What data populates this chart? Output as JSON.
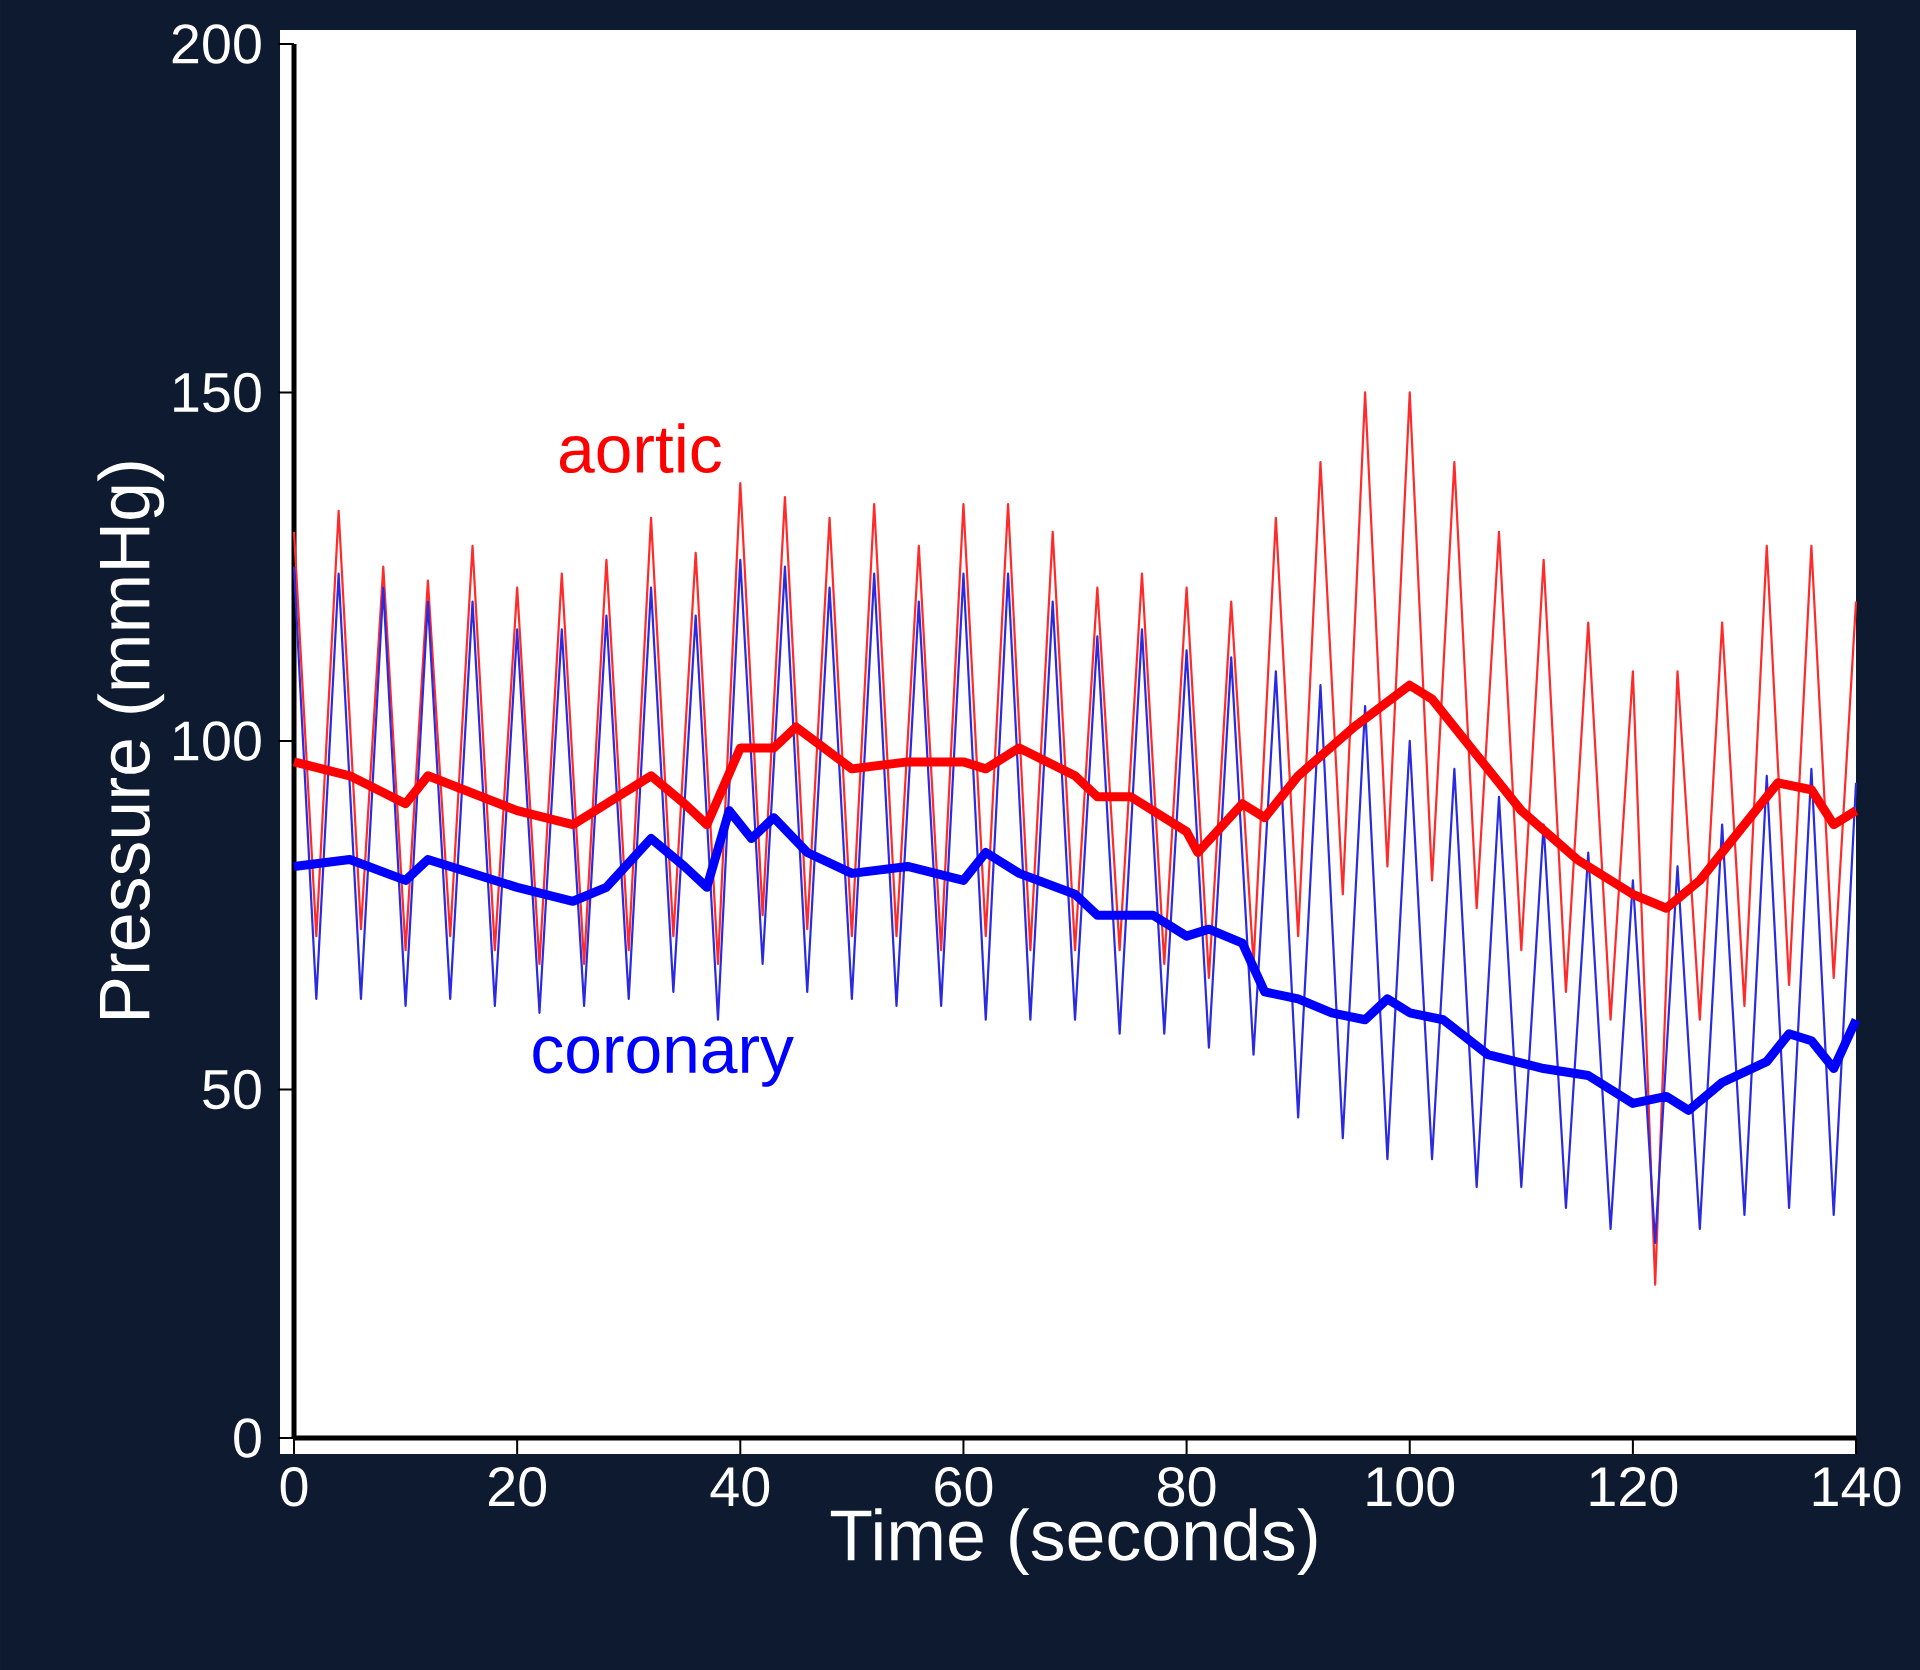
{
  "chart_data": {
    "type": "line",
    "xlabel": "Time (seconds)",
    "ylabel": "Pressure (mmHg)",
    "xlim": [
      0,
      140
    ],
    "ylim": [
      0,
      200
    ],
    "xticks": [
      0,
      20,
      40,
      60,
      80,
      100,
      120,
      140
    ],
    "yticks": [
      0,
      50,
      100,
      150,
      200
    ],
    "marker": "none",
    "series": [
      {
        "color": "#ff2a2a",
        "x": [
          0,
          2,
          4,
          6,
          8,
          10,
          12,
          14,
          16,
          18,
          20,
          22,
          24,
          26,
          28,
          30,
          32,
          34,
          36,
          38,
          40,
          42,
          44,
          46,
          48,
          50,
          52,
          54,
          56,
          58,
          60,
          62,
          64,
          66,
          68,
          70,
          72,
          74,
          76,
          78,
          80,
          82,
          84,
          86,
          88,
          90,
          92,
          94,
          96,
          98,
          100,
          102,
          104,
          106,
          108,
          110,
          112,
          114,
          116,
          118,
          120,
          122,
          124,
          126,
          128,
          130,
          132,
          134,
          136,
          138,
          140
        ],
        "values": [
          130,
          72,
          133,
          73,
          125,
          70,
          123,
          72,
          128,
          70,
          122,
          68,
          124,
          68,
          126,
          70,
          132,
          72,
          127,
          68,
          137,
          75,
          135,
          73,
          132,
          72,
          134,
          72,
          128,
          70,
          134,
          72,
          134,
          70,
          130,
          70,
          122,
          70,
          124,
          68,
          122,
          66,
          120,
          68,
          132,
          72,
          140,
          78,
          150,
          82,
          150,
          80,
          140,
          76,
          130,
          70,
          126,
          64,
          117,
          60,
          110,
          22,
          110,
          60,
          117,
          62,
          128,
          65,
          128,
          66,
          120
        ]
      },
      {
        "color": "#2a2ae0",
        "x": [
          0,
          2,
          4,
          6,
          8,
          10,
          12,
          14,
          16,
          18,
          20,
          22,
          24,
          26,
          28,
          30,
          32,
          34,
          36,
          38,
          40,
          42,
          44,
          46,
          48,
          50,
          52,
          54,
          56,
          58,
          60,
          62,
          64,
          66,
          68,
          70,
          72,
          74,
          76,
          78,
          80,
          82,
          84,
          86,
          88,
          90,
          92,
          94,
          96,
          98,
          100,
          102,
          104,
          106,
          108,
          110,
          112,
          114,
          116,
          118,
          120,
          122,
          124,
          126,
          128,
          130,
          132,
          134,
          136,
          138,
          140
        ],
        "values": [
          125,
          63,
          124,
          63,
          122,
          62,
          120,
          63,
          120,
          62,
          116,
          61,
          116,
          62,
          118,
          63,
          122,
          64,
          118,
          60,
          126,
          68,
          125,
          64,
          122,
          63,
          124,
          62,
          120,
          62,
          124,
          60,
          124,
          60,
          120,
          60,
          115,
          58,
          116,
          58,
          113,
          56,
          112,
          55,
          110,
          46,
          108,
          43,
          105,
          40,
          100,
          40,
          96,
          36,
          92,
          36,
          88,
          33,
          84,
          30,
          80,
          28,
          82,
          30,
          88,
          32,
          95,
          33,
          96,
          32,
          94
        ]
      },
      {
        "name": "aortic",
        "color": "#ff0000",
        "x": [
          0,
          5,
          10,
          12,
          20,
          25,
          28,
          32,
          35,
          37,
          40,
          43,
          45,
          50,
          55,
          60,
          62,
          65,
          70,
          72,
          75,
          80,
          81,
          85,
          87,
          90,
          95,
          100,
          102,
          105,
          110,
          115,
          120,
          123,
          126,
          130,
          133,
          136,
          138,
          140
        ],
        "values": [
          97,
          95,
          91,
          95,
          90,
          88,
          91,
          95,
          91,
          88,
          99,
          99,
          102,
          96,
          97,
          97,
          96,
          99,
          95,
          92,
          92,
          87,
          84,
          91,
          89,
          95,
          102,
          108,
          106,
          100,
          90,
          83,
          78,
          76,
          80,
          88,
          94,
          93,
          88,
          90
        ]
      },
      {
        "name": "coronary",
        "color": "#0000ff",
        "x": [
          0,
          5,
          10,
          12,
          20,
          25,
          28,
          32,
          35,
          37,
          39,
          41,
          43,
          46,
          50,
          55,
          60,
          62,
          65,
          70,
          72,
          77,
          80,
          82,
          85,
          87,
          90,
          93,
          96,
          98,
          100,
          103,
          107,
          112,
          116,
          120,
          123,
          125,
          128,
          132,
          134,
          136,
          138,
          140
        ],
        "values": [
          82,
          83,
          80,
          83,
          79,
          77,
          79,
          86,
          82,
          79,
          90,
          86,
          89,
          84,
          81,
          82,
          80,
          84,
          81,
          78,
          75,
          75,
          72,
          73,
          71,
          64,
          63,
          61,
          60,
          63,
          61,
          60,
          55,
          53,
          52,
          48,
          49,
          47,
          51,
          54,
          58,
          57,
          53,
          60
        ]
      }
    ]
  }
}
